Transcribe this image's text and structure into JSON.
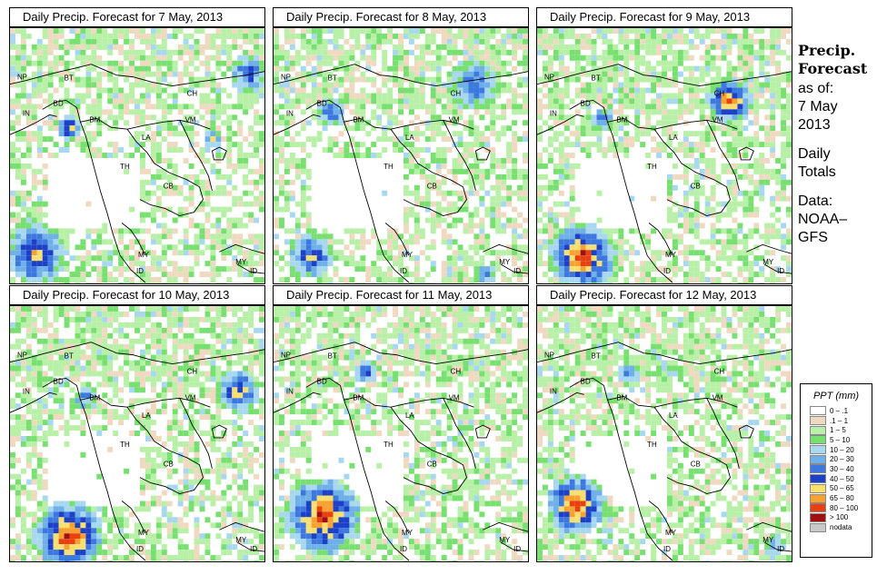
{
  "panels": [
    {
      "title": "Daily Precip. Forecast for  7 May, 2013"
    },
    {
      "title": "Daily Precip. Forecast for  8 May, 2013"
    },
    {
      "title": "Daily Precip. Forecast for  9 May, 2013"
    },
    {
      "title": "Daily Precip. Forecast for  10 May, 2013"
    },
    {
      "title": "Daily Precip. Forecast for  11 May, 2013"
    },
    {
      "title": "Daily Precip. Forecast for  12 May, 2013"
    }
  ],
  "country_labels": [
    "NP",
    "BT",
    "BD",
    "IN",
    "CH",
    "BM",
    "VM",
    "LA",
    "TH",
    "CB",
    "MY",
    "ID"
  ],
  "sidebar": {
    "title_line1": "Precip.",
    "title_line2": "Forecast",
    "asof": "as of:",
    "date_line1": "7 May",
    "date_line2": "2013",
    "totals_line1": "Daily",
    "totals_line2": "Totals",
    "data_line1": "Data:",
    "data_line2": "NOAA–",
    "data_line3": "GFS"
  },
  "legend": {
    "title": "PPT (mm)",
    "items": [
      {
        "label": "0 – .1",
        "color": "#ffffff"
      },
      {
        "label": ".1 – 1",
        "color": "#efd9c0"
      },
      {
        "label": "1 – 5",
        "color": "#b8f0a8"
      },
      {
        "label": "5 – 10",
        "color": "#78e070"
      },
      {
        "label": "10 – 20",
        "color": "#a8d8f0"
      },
      {
        "label": "20 – 30",
        "color": "#70b0e8"
      },
      {
        "label": "30 – 40",
        "color": "#3c78e0"
      },
      {
        "label": "40 – 50",
        "color": "#1c40c8"
      },
      {
        "label": "50 – 65",
        "color": "#f8e070"
      },
      {
        "label": "65 – 80",
        "color": "#f8a030"
      },
      {
        "label": "80 – 100",
        "color": "#e84010"
      },
      {
        "label": "> 100",
        "color": "#a01010"
      },
      {
        "label": "nodata",
        "color": "#c8c8c8"
      }
    ]
  }
}
